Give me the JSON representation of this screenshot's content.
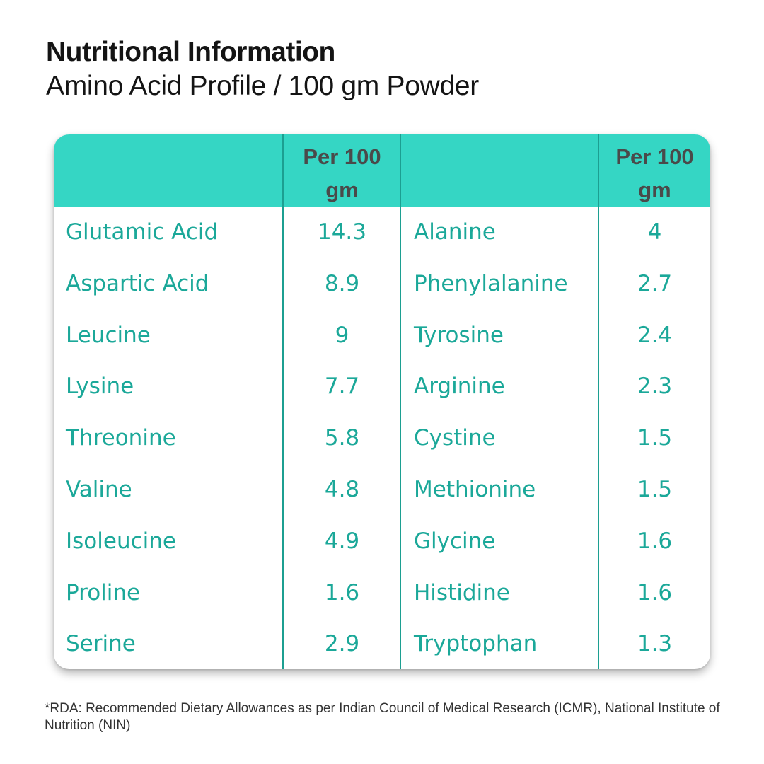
{
  "header": {
    "title": "Nutritional Information",
    "subtitle": "Amino Acid Profile / 100 gm Powder"
  },
  "table": {
    "column_headers": {
      "left_value": "Per 100 gm",
      "right_value": "Per 100 gm"
    },
    "rows": [
      {
        "left_name": "Glutamic Acid",
        "left_value": "14.3",
        "right_name": "Alanine",
        "right_value": "4"
      },
      {
        "left_name": "Aspartic Acid",
        "left_value": "8.9",
        "right_name": "Phenylalanine",
        "right_value": "2.7"
      },
      {
        "left_name": "Leucine",
        "left_value": "9",
        "right_name": "Tyrosine",
        "right_value": "2.4"
      },
      {
        "left_name": "Lysine",
        "left_value": "7.7",
        "right_name": "Arginine",
        "right_value": "2.3"
      },
      {
        "left_name": "Threonine",
        "left_value": "5.8",
        "right_name": "Cystine",
        "right_value": "1.5"
      },
      {
        "left_name": "Valine",
        "left_value": "4.8",
        "right_name": "Methionine",
        "right_value": "1.5"
      },
      {
        "left_name": "Isoleucine",
        "left_value": "4.9",
        "right_name": "Glycine",
        "right_value": "1.6"
      },
      {
        "left_name": "Proline",
        "left_value": "1.6",
        "right_name": "Histidine",
        "right_value": "1.6"
      },
      {
        "left_name": "Serine",
        "left_value": "2.9",
        "right_name": "Tryptophan",
        "right_value": "1.3"
      }
    ]
  },
  "footnote": "*RDA: Recommended Dietary Allowances as per Indian Council of Medical Research (ICMR), National Institute of Nutrition (NIN)",
  "colors": {
    "header_background": "#35d6c4",
    "accent_text": "#1ba899",
    "divider": "#1c9f91"
  }
}
